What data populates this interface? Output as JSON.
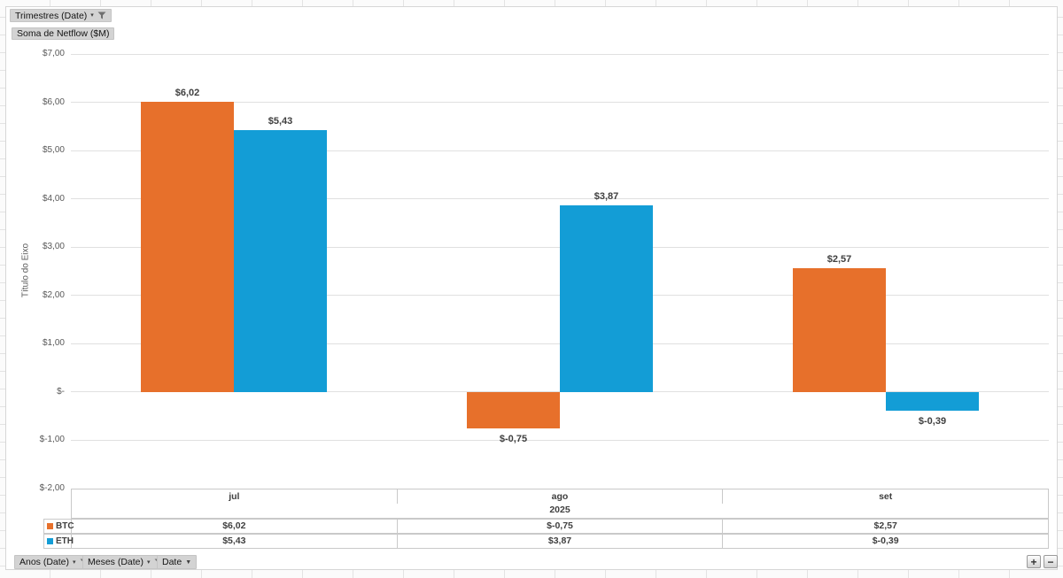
{
  "pivot_chart": {
    "filter_buttons": {
      "rows": {
        "label": "Trimestres (Date)"
      },
      "value": {
        "label": "Soma de Netflow ($M)"
      },
      "bottom": [
        {
          "label": "Anos (Date)",
          "has_filter_icon": true
        },
        {
          "label": "Meses (Date)",
          "has_filter_icon": true
        },
        {
          "label": "Date",
          "has_filter_icon": false
        }
      ]
    },
    "expand_collapse": {
      "expand": "+",
      "collapse": "−"
    }
  },
  "chart_data": {
    "type": "bar",
    "title": "",
    "categories": [
      "jul",
      "ago",
      "set"
    ],
    "year_label": "2025",
    "series": [
      {
        "name": "BTC",
        "color": "#e7702b",
        "values": [
          6.02,
          -0.75,
          2.57
        ],
        "data_labels": [
          "$6,02",
          "$-0,75",
          "$2,57"
        ]
      },
      {
        "name": "ETH",
        "color": "#139dd6",
        "values": [
          5.43,
          3.87,
          -0.39
        ],
        "data_labels": [
          "$5,43",
          "$3,87",
          "$-0,39"
        ]
      }
    ],
    "xlabel": "",
    "ylabel": "Título do Eixo",
    "ylim": [
      -2,
      7
    ],
    "yticks": [
      {
        "value": 7,
        "label": "$7,00"
      },
      {
        "value": 6,
        "label": "$6,00"
      },
      {
        "value": 5,
        "label": "$5,00"
      },
      {
        "value": 4,
        "label": "$4,00"
      },
      {
        "value": 3,
        "label": "$3,00"
      },
      {
        "value": 2,
        "label": "$2,00"
      },
      {
        "value": 1,
        "label": "$1,00"
      },
      {
        "value": 0,
        "label": "$-"
      },
      {
        "value": -1,
        "label": "$-1,00"
      },
      {
        "value": -2,
        "label": "$-2,00"
      }
    ],
    "grid": true,
    "legend_position": "data-table-left",
    "data_table": true
  }
}
